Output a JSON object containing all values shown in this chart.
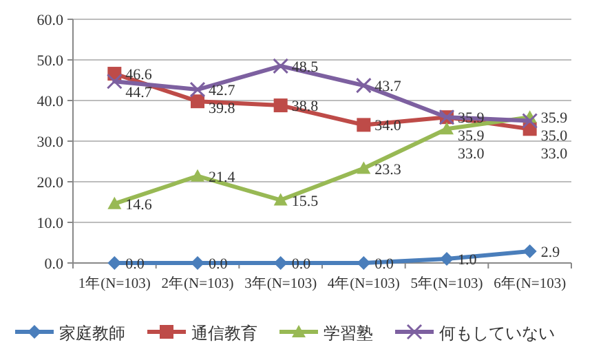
{
  "chart_data": {
    "type": "line",
    "categories": [
      "1年(N=103)",
      "2年(N=103)",
      "3年(N=103)",
      "4年(N=103)",
      "5年(N=103)",
      "6年(N=103)"
    ],
    "series": [
      {
        "name": "家庭教師",
        "color": "#4a7ebb",
        "marker": "diamond",
        "values": [
          0.0,
          0.0,
          0.0,
          0.0,
          1.0,
          2.9
        ],
        "value_labels": [
          "0.0",
          "0.0",
          "0.0",
          "0.0",
          "1.0",
          "2.9"
        ]
      },
      {
        "name": "通信教育",
        "color": "#be4b48",
        "marker": "square",
        "values": [
          46.6,
          39.8,
          38.8,
          34.0,
          35.9,
          33.0
        ],
        "value_labels": [
          "46.6",
          "39.8",
          "38.8",
          "34.0",
          "35.9",
          "33.0"
        ]
      },
      {
        "name": "学習塾",
        "color": "#98b954",
        "marker": "triangle",
        "values": [
          14.6,
          21.4,
          15.5,
          23.3,
          33.0,
          35.9
        ],
        "value_labels": [
          "14.6",
          "21.4",
          "15.5",
          "23.3",
          "33.0",
          "35.9"
        ]
      },
      {
        "name": "何もしていない",
        "color": "#7d60a0",
        "marker": "cross",
        "values": [
          44.7,
          42.7,
          48.5,
          43.7,
          35.9,
          35.0
        ],
        "value_labels": [
          "44.7",
          "42.7",
          "48.5",
          "43.7",
          "35.9",
          "35.0"
        ]
      }
    ],
    "ylim": [
      0,
      60
    ],
    "yticks": [
      {
        "value": 0,
        "label": "0.0"
      },
      {
        "value": 10,
        "label": "10.0"
      },
      {
        "value": 20,
        "label": "20.0"
      },
      {
        "value": 30,
        "label": "30.0"
      },
      {
        "value": 40,
        "label": "40.0"
      },
      {
        "value": 50,
        "label": "50.0"
      },
      {
        "value": 60,
        "label": "60.0"
      }
    ],
    "grid": "y",
    "legend": "bottom"
  }
}
